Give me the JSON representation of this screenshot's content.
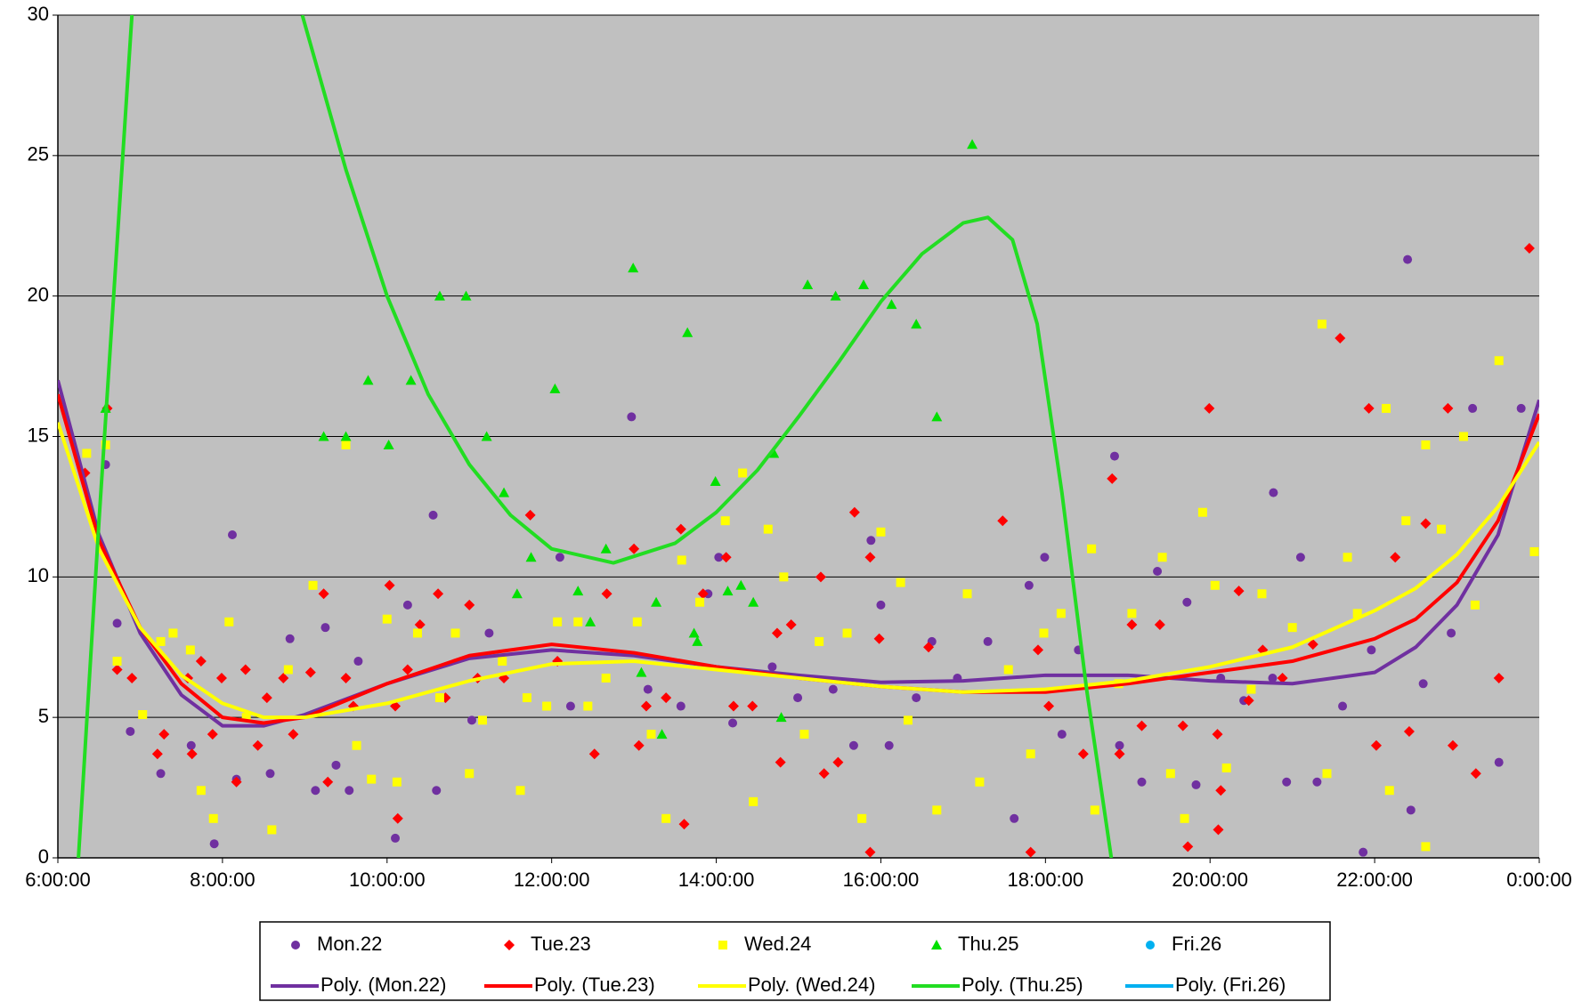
{
  "chart_data": {
    "type": "scatter",
    "xlim": [
      6,
      24
    ],
    "ylim": [
      0,
      30
    ],
    "xticks": [
      {
        "value": 6,
        "label": "6:00:00"
      },
      {
        "value": 8,
        "label": "8:00:00"
      },
      {
        "value": 10,
        "label": "10:00:00"
      },
      {
        "value": 12,
        "label": "12:00:00"
      },
      {
        "value": 14,
        "label": "14:00:00"
      },
      {
        "value": 16,
        "label": "16:00:00"
      },
      {
        "value": 18,
        "label": "18:00:00"
      },
      {
        "value": 20,
        "label": "20:00:00"
      },
      {
        "value": 22,
        "label": "22:00:00"
      },
      {
        "value": 24,
        "label": "0:00:00"
      }
    ],
    "yticks": [
      0,
      5,
      10,
      15,
      20,
      25,
      30
    ],
    "grid": true,
    "legend": "bottom",
    "background": "#c0c0c0",
    "series": [
      {
        "name": "Mon.22",
        "color": "#7030a0",
        "marker": "circle",
        "x": [
          6.58,
          6.72,
          6.88,
          7.25,
          7.62,
          7.9,
          8.12,
          8.17,
          8.58,
          8.82,
          9.13,
          9.25,
          9.38,
          9.54,
          9.65,
          10.1,
          10.25,
          10.56,
          10.6,
          11.03,
          11.24,
          12.1,
          12.23,
          12.97,
          13.17,
          13.57,
          13.9,
          14.03,
          14.2,
          14.68,
          14.99,
          15.42,
          15.67,
          15.88,
          16.0,
          16.1,
          16.43,
          16.62,
          16.93,
          17.3,
          17.62,
          17.8,
          17.99,
          18.2,
          18.4,
          18.84,
          18.9,
          19.17,
          19.36,
          19.72,
          19.83,
          20.13,
          20.41,
          20.76,
          20.77,
          20.93,
          21.1,
          21.3,
          21.61,
          21.86,
          21.96,
          22.4,
          22.44,
          22.59,
          22.93,
          23.19,
          23.51,
          23.78
        ],
        "values": [
          14,
          8.35,
          4.5,
          3,
          4,
          0.5,
          11.5,
          2.8,
          3,
          7.8,
          2.4,
          8.2,
          3.3,
          2.4,
          7,
          0.7,
          9,
          12.2,
          2.4,
          4.9,
          8,
          10.7,
          5.4,
          15.7,
          6,
          5.4,
          9.4,
          10.7,
          4.8,
          6.8,
          5.7,
          6,
          4,
          11.3,
          9,
          4,
          5.7,
          7.7,
          6.4,
          7.7,
          1.4,
          9.7,
          10.7,
          4.4,
          7.4,
          14.3,
          4,
          2.7,
          10.2,
          9.1,
          2.6,
          6.4,
          5.6,
          6.4,
          13,
          2.7,
          10.7,
          2.7,
          5.4,
          0.2,
          7.4,
          21.3,
          1.7,
          6.2,
          8,
          16,
          3.4,
          16
        ]
      },
      {
        "name": "Tue.23",
        "color": "#ff0000",
        "marker": "diamond",
        "x": [
          6.33,
          6.6,
          6.72,
          6.9,
          7.21,
          7.29,
          7.58,
          7.63,
          7.74,
          7.88,
          7.99,
          8.17,
          8.28,
          8.43,
          8.54,
          8.74,
          8.86,
          9.07,
          9.23,
          9.28,
          9.5,
          9.59,
          10.03,
          10.13,
          10.1,
          10.25,
          10.4,
          10.62,
          10.71,
          11.0,
          11.1,
          11.42,
          11.74,
          12.07,
          12.52,
          12.67,
          13.0,
          13.06,
          13.15,
          13.39,
          13.57,
          13.61,
          13.84,
          14.12,
          14.21,
          14.44,
          14.74,
          14.78,
          14.91,
          15.27,
          15.31,
          15.48,
          15.68,
          15.87,
          15.87,
          15.98,
          16.58,
          17.48,
          17.82,
          17.91,
          18.04,
          18.46,
          18.81,
          18.9,
          19.05,
          19.17,
          19.39,
          19.67,
          19.73,
          19.99,
          20.09,
          20.1,
          20.13,
          20.35,
          20.47,
          20.64,
          20.88,
          21.25,
          21.58,
          21.93,
          22.02,
          22.25,
          22.42,
          22.62,
          22.89,
          22.95,
          23.23,
          23.51,
          23.88
        ],
        "values": [
          13.7,
          16,
          6.7,
          6.4,
          3.7,
          4.4,
          6.4,
          3.7,
          7,
          4.4,
          6.4,
          2.7,
          6.7,
          4,
          5.7,
          6.4,
          4.4,
          6.6,
          9.4,
          2.7,
          6.4,
          5.4,
          9.7,
          1.4,
          5.4,
          6.7,
          8.3,
          9.4,
          5.7,
          9,
          6.4,
          6.4,
          12.2,
          7,
          3.7,
          9.4,
          11,
          4,
          5.4,
          5.7,
          11.7,
          1.2,
          9.4,
          10.7,
          5.4,
          5.4,
          8,
          3.4,
          8.3,
          10,
          3,
          3.4,
          12.3,
          10.7,
          0.2,
          7.8,
          7.5,
          12,
          0.2,
          7.4,
          5.4,
          3.7,
          13.5,
          3.7,
          8.3,
          4.7,
          8.3,
          4.7,
          0.4,
          16,
          4.4,
          1,
          2.4,
          9.5,
          5.6,
          7.4,
          6.4,
          7.6,
          18.5,
          16,
          4,
          10.7,
          4.5,
          11.9,
          16,
          4,
          3,
          6.4,
          21.7
        ]
      },
      {
        "name": "Wed.24",
        "color": "#ffff00",
        "marker": "square",
        "x": [
          6.35,
          6.58,
          6.72,
          7.03,
          7.25,
          7.4,
          7.61,
          7.74,
          7.89,
          8.08,
          8.29,
          8.6,
          8.8,
          9.1,
          9.5,
          9.63,
          9.81,
          10.0,
          10.12,
          10.37,
          10.64,
          10.83,
          11.0,
          11.16,
          11.4,
          11.62,
          11.7,
          11.94,
          12.07,
          12.32,
          12.44,
          12.66,
          13.04,
          13.21,
          13.39,
          13.58,
          13.8,
          14.11,
          14.32,
          14.45,
          14.63,
          14.82,
          15.07,
          15.25,
          15.59,
          15.77,
          16.0,
          16.24,
          16.33,
          16.68,
          17.05,
          17.2,
          17.55,
          17.82,
          17.98,
          18.19,
          18.56,
          18.6,
          18.89,
          19.05,
          19.42,
          19.52,
          19.69,
          19.91,
          20.06,
          20.2,
          20.5,
          20.63,
          21.0,
          21.36,
          21.42,
          21.67,
          21.79,
          22.14,
          22.18,
          22.38,
          22.62,
          22.62,
          22.81,
          23.08,
          23.22,
          23.51,
          23.94
        ],
        "values": [
          14.4,
          14.7,
          7,
          5.1,
          7.7,
          8,
          7.4,
          2.4,
          1.4,
          8.4,
          5,
          1,
          6.7,
          9.7,
          14.7,
          4,
          2.8,
          8.5,
          2.7,
          8,
          5.7,
          8,
          3,
          4.9,
          7,
          2.4,
          5.7,
          5.4,
          8.4,
          8.4,
          5.4,
          6.4,
          8.4,
          4.4,
          1.4,
          10.6,
          9.1,
          12,
          13.7,
          2,
          11.7,
          10,
          4.4,
          7.7,
          8,
          1.4,
          11.6,
          9.8,
          4.9,
          1.7,
          9.4,
          2.7,
          6.7,
          3.7,
          8,
          8.7,
          11,
          1.7,
          6.2,
          8.7,
          10.7,
          3,
          1.4,
          12.3,
          9.7,
          3.2,
          6,
          9.4,
          8.2,
          19,
          3,
          10.7,
          8.7,
          16,
          2.4,
          12,
          14.7,
          0.4,
          11.7,
          15,
          9,
          17.7,
          10.9
        ]
      },
      {
        "name": "Thu.25",
        "color": "#00e000",
        "marker": "triangle",
        "x": [
          6.58,
          9.23,
          9.5,
          9.77,
          10.02,
          10.29,
          10.64,
          10.96,
          11.21,
          11.42,
          11.58,
          11.75,
          12.04,
          12.32,
          12.47,
          12.66,
          12.99,
          13.09,
          13.27,
          13.34,
          13.65,
          13.73,
          13.77,
          13.99,
          14.14,
          14.3,
          14.45,
          14.7,
          14.79,
          15.11,
          15.45,
          15.79,
          16.13,
          16.43,
          16.68,
          17.11
        ],
        "values": [
          16,
          15,
          15,
          17,
          14.7,
          17,
          20,
          20,
          15,
          13,
          9.4,
          10.7,
          16.7,
          9.5,
          8.4,
          11,
          21,
          6.6,
          9.1,
          4.4,
          18.7,
          8,
          7.7,
          13.4,
          9.5,
          9.7,
          9.1,
          14.4,
          5,
          20.4,
          20,
          20.4,
          19.7,
          19,
          15.7,
          25.4
        ]
      },
      {
        "name": "Fri.26",
        "color": "#00b0f0",
        "marker": "circle",
        "x": [],
        "values": []
      }
    ],
    "trendlines": [
      {
        "name": "Poly. (Mon.22)",
        "color": "#7030a0",
        "x": [
          6,
          6.5,
          7,
          7.5,
          8,
          8.5,
          9,
          10,
          11,
          12,
          13,
          14,
          15,
          16,
          17,
          18,
          19,
          20,
          21,
          22,
          22.5,
          23,
          23.5,
          24
        ],
        "values": [
          17,
          11.5,
          8,
          5.8,
          4.7,
          4.7,
          5.1,
          6.2,
          7.1,
          7.4,
          7.2,
          6.8,
          6.5,
          6.25,
          6.3,
          6.5,
          6.5,
          6.3,
          6.2,
          6.6,
          7.5,
          9,
          11.5,
          16.3
        ]
      },
      {
        "name": "Poly. (Tue.23)",
        "color": "#ff0000",
        "x": [
          6,
          6.5,
          7,
          7.5,
          8,
          8.5,
          9,
          10,
          11,
          12,
          13,
          14,
          15,
          16,
          17,
          18,
          19,
          20,
          21,
          22,
          22.5,
          23,
          23.5,
          24
        ],
        "values": [
          16.5,
          11.3,
          8.2,
          6.2,
          5.0,
          4.8,
          5.0,
          6.2,
          7.2,
          7.6,
          7.3,
          6.8,
          6.4,
          6.1,
          5.9,
          5.9,
          6.2,
          6.6,
          7.0,
          7.8,
          8.5,
          9.8,
          12,
          15.8
        ]
      },
      {
        "name": "Poly. (Wed.24)",
        "color": "#ffff00",
        "x": [
          6,
          6.5,
          7,
          7.5,
          8,
          8.5,
          9,
          10,
          11,
          12,
          13,
          14,
          15,
          16,
          17,
          18,
          19,
          20,
          21,
          22,
          22.5,
          23,
          23.5,
          24
        ],
        "values": [
          15.5,
          11,
          8.2,
          6.5,
          5.5,
          5.0,
          5.0,
          5.5,
          6.3,
          6.9,
          7.0,
          6.7,
          6.4,
          6.1,
          5.9,
          6.0,
          6.3,
          6.8,
          7.5,
          8.8,
          9.6,
          10.8,
          12.5,
          14.8
        ]
      },
      {
        "name": "Poly. (Thu.25)",
        "color": "#22dd22",
        "x": [
          6.25,
          6.5,
          6.9,
          8,
          8.97,
          9.5,
          10,
          10.5,
          11,
          11.5,
          12,
          12.75,
          13.5,
          14,
          14.5,
          15,
          15.5,
          16,
          16.5,
          17,
          17.3,
          17.6,
          17.9,
          18.2,
          18.5,
          18.8
        ],
        "values": [
          0,
          12,
          30,
          null,
          30,
          24.5,
          20,
          16.5,
          14,
          12.2,
          11,
          10.5,
          11.2,
          12.3,
          13.8,
          15.7,
          17.7,
          19.8,
          21.5,
          22.6,
          22.8,
          22,
          19,
          13,
          6,
          0
        ]
      },
      {
        "name": "Poly. (Fri.26)",
        "color": "#00b0f0",
        "x": [],
        "values": []
      }
    ]
  }
}
